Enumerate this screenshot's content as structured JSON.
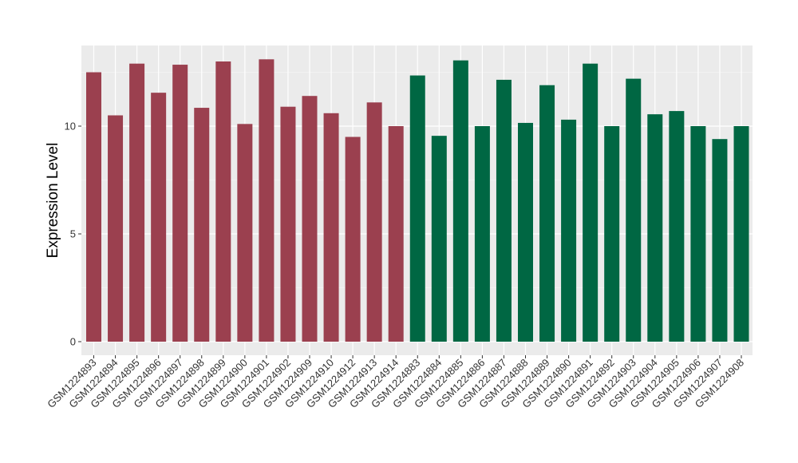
{
  "chart_data": {
    "type": "bar",
    "title": "",
    "xlabel": "",
    "ylabel": "Expression Level",
    "ylim": [
      0,
      13.8
    ],
    "yticks": [
      0,
      5,
      10
    ],
    "grid": true,
    "legend": "none",
    "categories": [
      "GSM1224893",
      "GSM1224894",
      "GSM1224895",
      "GSM1224896",
      "GSM1224897",
      "GSM1224898",
      "GSM1224899",
      "GSM1224900",
      "GSM1224901",
      "GSM1224902",
      "GSM1224909",
      "GSM1224910",
      "GSM1224912",
      "GSM1224913",
      "GSM1224914",
      "GSM1224883",
      "GSM1224884",
      "GSM1224885",
      "GSM1224886",
      "GSM1224887",
      "GSM1224888",
      "GSM1224889",
      "GSM1224890",
      "GSM1224891",
      "GSM1224892",
      "GSM1224903",
      "GSM1224904",
      "GSM1224905",
      "GSM1224906",
      "GSM1224907",
      "GSM1224908"
    ],
    "values": [
      12.5,
      10.5,
      12.9,
      11.55,
      12.85,
      10.85,
      13.0,
      10.1,
      13.1,
      10.9,
      11.4,
      10.6,
      9.5,
      11.1,
      10.0,
      12.35,
      9.55,
      13.05,
      10.0,
      12.15,
      10.15,
      11.9,
      10.3,
      12.9,
      10.0,
      12.2,
      10.55,
      10.7,
      10.0,
      9.4,
      10.0
    ],
    "group_sizes": [
      15,
      16
    ],
    "colors": {
      "group1": "#9b404f",
      "group2": "#006743",
      "panel": "#ebebeb",
      "grid_major": "#ffffff",
      "grid_minor": "#f5f5f5",
      "axis_tick": "#333333"
    }
  }
}
